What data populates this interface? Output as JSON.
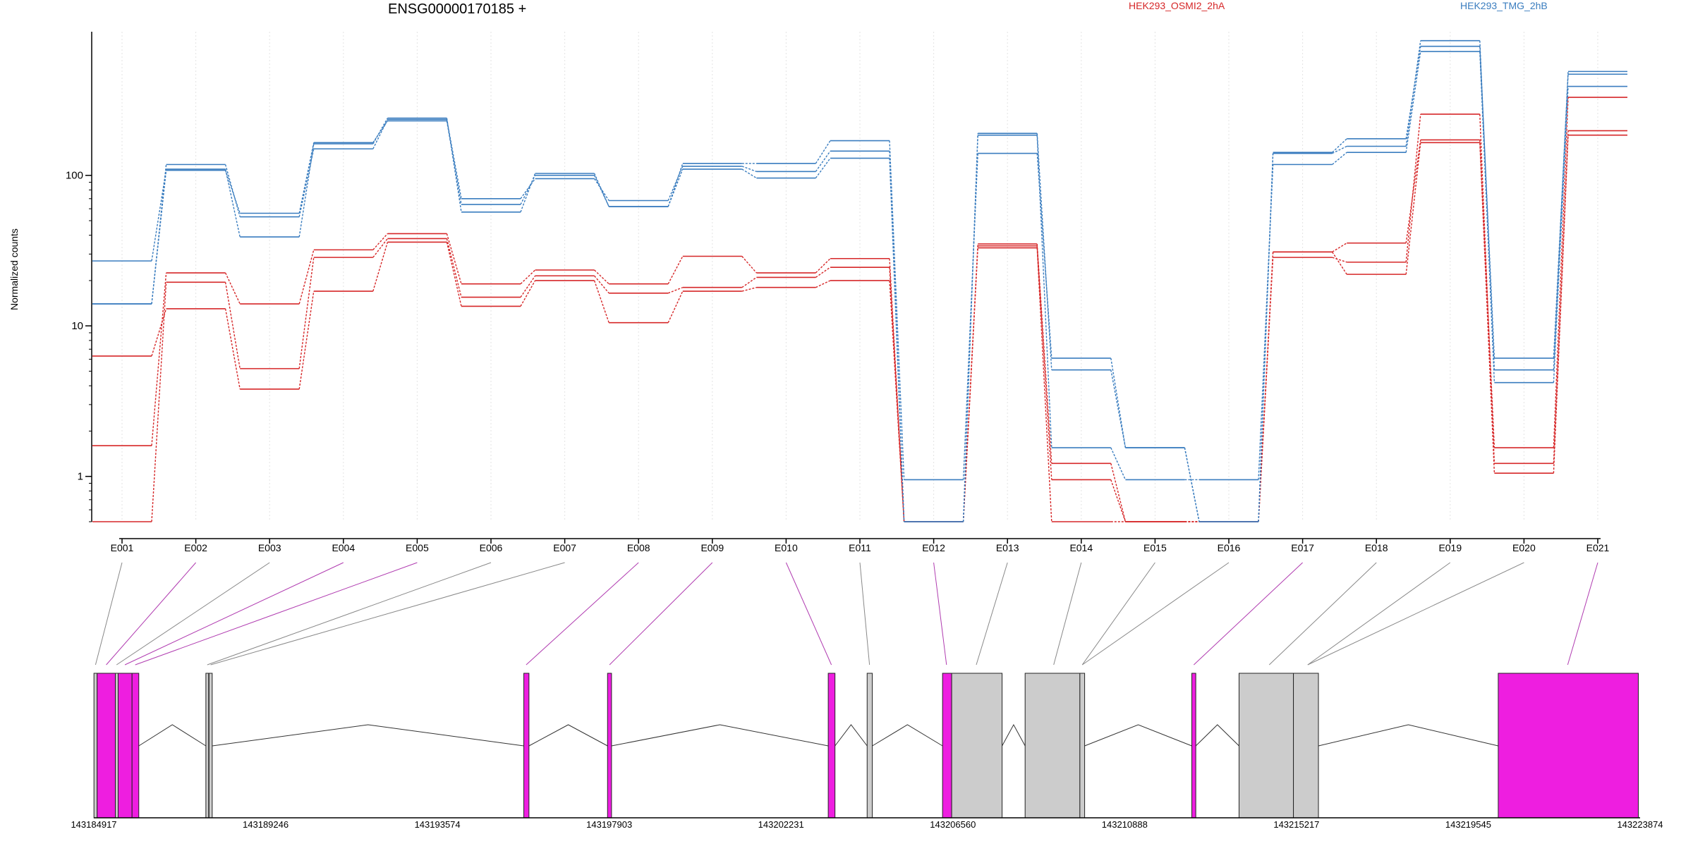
{
  "chart_data": {
    "type": "line",
    "title": "ENSG00000170185 +",
    "ylabel": "Normalized counts",
    "yscale": "log",
    "y_ticks": [
      1,
      10,
      100
    ],
    "y_tick_labels": [
      "1",
      "10",
      "100"
    ],
    "ylim": [
      0.5,
      900
    ],
    "grid": "vertical dotted",
    "legend_placement": "top",
    "categories": [
      "E001",
      "E002",
      "E003",
      "E004",
      "E005",
      "E006",
      "E007",
      "E008",
      "E009",
      "E010",
      "E011",
      "E012",
      "E013",
      "E014",
      "E015",
      "E016",
      "E017",
      "E018",
      "E019",
      "E020",
      "E021"
    ],
    "colors": {
      "HEK293_OSMI2_2hA": "#d62728",
      "HEK293_TMG_2hB": "#3a7dbf",
      "exon_de": "#ee1ee0",
      "exon_ns": "#cccccc"
    },
    "series": [
      {
        "name": "HEK293_OSMI2_2hA",
        "color": "#d62728",
        "values": [
          0.5,
          19.5,
          5.2,
          28.5,
          38,
          15.5,
          21.5,
          16.5,
          18,
          21,
          24.5,
          0.5,
          35,
          1.22,
          0.5,
          0.5,
          31,
          35.5,
          172,
          1.55,
          330
        ]
      },
      {
        "name": "HEK293_OSMI2_2hA",
        "color": "#d62728",
        "values": [
          1.6,
          22.5,
          14,
          32,
          41,
          19,
          23.5,
          19,
          29,
          22.5,
          28,
          0.5,
          34,
          0.95,
          0.5,
          0.5,
          28.5,
          26.5,
          255,
          1.22,
          198
        ]
      },
      {
        "name": "HEK293_OSMI2_2hA",
        "color": "#d62728",
        "values": [
          6.3,
          13,
          3.8,
          17,
          36,
          13.5,
          20,
          10.5,
          17,
          18,
          20,
          0.5,
          33,
          0.5,
          0.5,
          0.5,
          31,
          22,
          165,
          1.05,
          185
        ]
      },
      {
        "name": "HEK293_TMG_2hB",
        "color": "#3a7dbf",
        "values": [
          14,
          108,
          56,
          165,
          230,
          64,
          100,
          62,
          120,
          120,
          170,
          0.95,
          140,
          6.1,
          1.55,
          0.5,
          142,
          175,
          720,
          6.1,
          470
        ]
      },
      {
        "name": "HEK293_TMG_2hB",
        "color": "#3a7dbf",
        "values": [
          14,
          118,
          53,
          150,
          235,
          70,
          95,
          68,
          115,
          106,
          145,
          0.5,
          190,
          5.1,
          1.55,
          0.5,
          140,
          156,
          785,
          5.1,
          490
        ]
      },
      {
        "name": "HEK293_TMG_2hB",
        "color": "#3a7dbf",
        "values": [
          27,
          110,
          39,
          162,
          240,
          57,
          103,
          62,
          110,
          96,
          130,
          0.5,
          185,
          1.55,
          0.95,
          0.95,
          118,
          142,
          665,
          4.2,
          390
        ]
      }
    ],
    "genomic_axis": {
      "ticks": [
        143184917,
        143189246,
        143193574,
        143197903,
        143202231,
        143206560,
        143210888,
        143215217,
        143219545,
        143223874
      ],
      "tick_labels": [
        "143184917",
        "143189246",
        "143193574",
        "143197903",
        "143202231",
        "143206560",
        "143210888",
        "143215217",
        "143219545",
        "143223874"
      ]
    },
    "exons": [
      {
        "id": "E001",
        "start": 143184920,
        "end": 143185000,
        "significant": false
      },
      {
        "id": "E002",
        "start": 143185000,
        "end": 143185460,
        "significant": true
      },
      {
        "id": "E003",
        "start": 143185460,
        "end": 143185530,
        "significant": false
      },
      {
        "id": "E004",
        "start": 143185530,
        "end": 143185880,
        "significant": true
      },
      {
        "id": "E005",
        "start": 143185880,
        "end": 143186050,
        "significant": true
      },
      {
        "id": "E006",
        "start": 143187740,
        "end": 143187810,
        "significant": false
      },
      {
        "id": "E007",
        "start": 143187820,
        "end": 143187900,
        "significant": false
      },
      {
        "id": "E008",
        "start": 143195750,
        "end": 143195880,
        "significant": true
      },
      {
        "id": "E009",
        "start": 143197860,
        "end": 143197960,
        "significant": true
      },
      {
        "id": "E010",
        "start": 143203420,
        "end": 143203590,
        "significant": true
      },
      {
        "id": "E011",
        "start": 143204400,
        "end": 143204530,
        "significant": false
      },
      {
        "id": "E012",
        "start": 143206300,
        "end": 143206530,
        "significant": true
      },
      {
        "id": "E013",
        "start": 143206530,
        "end": 143207800,
        "significant": false
      },
      {
        "id": "E014",
        "start": 143208380,
        "end": 143209760,
        "significant": false
      },
      {
        "id": "E015",
        "start": 143209760,
        "end": 143209880,
        "significant": false
      },
      {
        "id": "E016",
        "start": 143212580,
        "end": 143212680,
        "significant": true
      },
      {
        "id": "E017",
        "start": 143213770,
        "end": 143215140,
        "significant": false
      },
      {
        "id": "E018",
        "start": 143215140,
        "end": 143215770,
        "significant": false
      },
      {
        "id": "E019",
        "start": 143220300,
        "end": 143223830,
        "significant": true
      }
    ],
    "connector_map": [
      {
        "bin": "E001",
        "x": 143184960,
        "significant": false
      },
      {
        "bin": "E002",
        "x": 143185230,
        "significant": true
      },
      {
        "bin": "E003",
        "x": 143185490,
        "significant": false
      },
      {
        "bin": "E004",
        "x": 143185700,
        "significant": true
      },
      {
        "bin": "E005",
        "x": 143185960,
        "significant": true
      },
      {
        "bin": "E006",
        "x": 143187775,
        "significant": false
      },
      {
        "bin": "E007",
        "x": 143187860,
        "significant": false
      },
      {
        "bin": "E008",
        "x": 143195810,
        "significant": true
      },
      {
        "bin": "E009",
        "x": 143197910,
        "significant": true
      },
      {
        "bin": "E010",
        "x": 143203500,
        "significant": true
      },
      {
        "bin": "E011",
        "x": 143204460,
        "significant": false
      },
      {
        "bin": "E012",
        "x": 143206400,
        "significant": true
      },
      {
        "bin": "E013",
        "x": 143207150,
        "significant": false
      },
      {
        "bin": "E014",
        "x": 143209100,
        "significant": false
      },
      {
        "bin": "E015",
        "x": 143209820,
        "significant": false
      },
      {
        "bin": "E016",
        "x": 143209820,
        "significant": false
      },
      {
        "bin": "E017",
        "x": 143212630,
        "significant": true
      },
      {
        "bin": "E018",
        "x": 143214530,
        "significant": false
      },
      {
        "bin": "E019",
        "x": 143215500,
        "significant": false
      },
      {
        "bin": "E020",
        "x": 143215500,
        "significant": false
      },
      {
        "bin": "E021",
        "x": 143222050,
        "significant": true
      }
    ]
  }
}
